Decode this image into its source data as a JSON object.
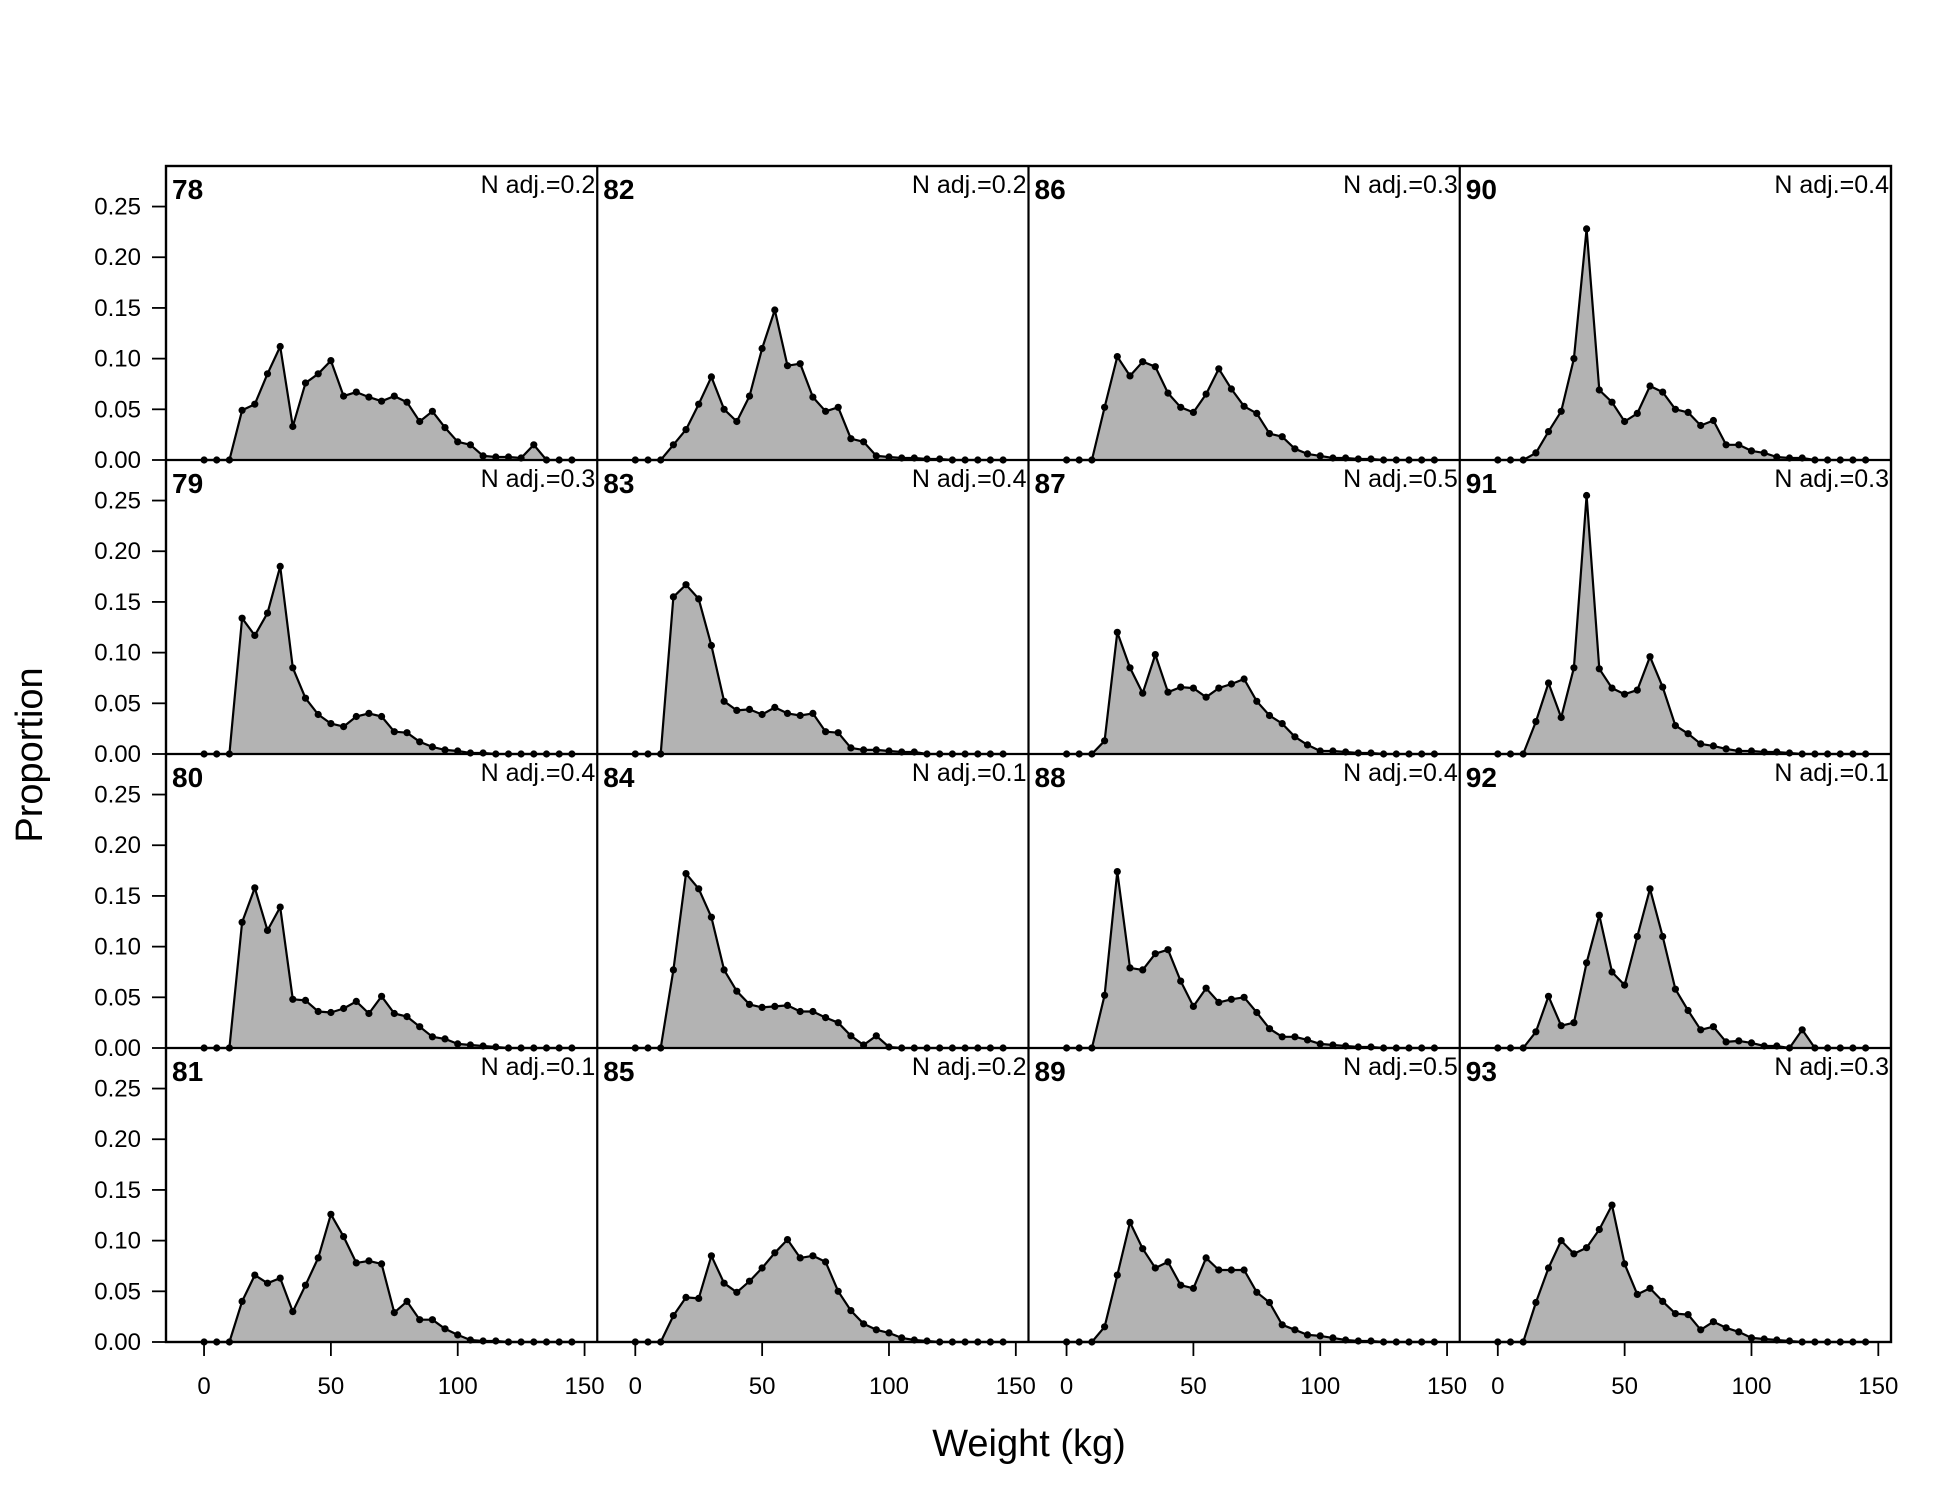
{
  "chart_data": {
    "type": "area",
    "xlabel": "Weight (kg)",
    "ylabel": "Proportion",
    "xlim": [
      -15,
      155
    ],
    "ylim": [
      0,
      0.29
    ],
    "xticks": [
      0,
      50,
      100,
      150
    ],
    "yticks": [
      "0.00",
      "0.05",
      "0.10",
      "0.15",
      "0.20",
      "0.25"
    ],
    "x": [
      0,
      5,
      10,
      15,
      20,
      25,
      30,
      35,
      40,
      45,
      50,
      55,
      60,
      65,
      70,
      75,
      80,
      85,
      90,
      95,
      100,
      105,
      110,
      115,
      120,
      125,
      130,
      135,
      140,
      145
    ],
    "panels": [
      {
        "year": "78",
        "adj": "N adj.=0.2",
        "values": [
          0,
          0,
          0,
          0.049,
          0.055,
          0.085,
          0.112,
          0.033,
          0.076,
          0.085,
          0.098,
          0.063,
          0.067,
          0.062,
          0.058,
          0.063,
          0.057,
          0.038,
          0.048,
          0.032,
          0.018,
          0.015,
          0.004,
          0.003,
          0.003,
          0.002,
          0.015,
          0,
          0,
          0
        ]
      },
      {
        "year": "82",
        "adj": "N adj.=0.2",
        "values": [
          0,
          0,
          0,
          0.015,
          0.03,
          0.055,
          0.082,
          0.05,
          0.038,
          0.063,
          0.11,
          0.148,
          0.093,
          0.095,
          0.062,
          0.048,
          0.052,
          0.021,
          0.018,
          0.004,
          0.003,
          0.002,
          0.002,
          0.001,
          0.001,
          0,
          0,
          0,
          0,
          0
        ]
      },
      {
        "year": "86",
        "adj": "N adj.=0.3",
        "values": [
          0,
          0,
          0,
          0.052,
          0.102,
          0.083,
          0.097,
          0.092,
          0.066,
          0.052,
          0.047,
          0.065,
          0.09,
          0.07,
          0.053,
          0.046,
          0.026,
          0.023,
          0.011,
          0.006,
          0.004,
          0.002,
          0.002,
          0.001,
          0.001,
          0,
          0,
          0,
          0,
          0
        ]
      },
      {
        "year": "90",
        "adj": "N adj.=0.4",
        "values": [
          0,
          0,
          0,
          0.007,
          0.028,
          0.048,
          0.1,
          0.228,
          0.069,
          0.057,
          0.038,
          0.046,
          0.073,
          0.067,
          0.05,
          0.047,
          0.034,
          0.039,
          0.015,
          0.015,
          0.009,
          0.007,
          0.003,
          0.002,
          0.002,
          0,
          0,
          0,
          0,
          0
        ]
      },
      {
        "year": "79",
        "adj": "N adj.=0.3",
        "values": [
          0,
          0,
          0,
          0.134,
          0.117,
          0.139,
          0.185,
          0.085,
          0.055,
          0.039,
          0.03,
          0.027,
          0.037,
          0.04,
          0.037,
          0.022,
          0.021,
          0.012,
          0.007,
          0.004,
          0.003,
          0.001,
          0.001,
          0,
          0,
          0,
          0,
          0,
          0,
          0
        ]
      },
      {
        "year": "83",
        "adj": "N adj.=0.4",
        "values": [
          0,
          0,
          0,
          0.155,
          0.167,
          0.153,
          0.107,
          0.052,
          0.043,
          0.044,
          0.039,
          0.046,
          0.04,
          0.038,
          0.04,
          0.022,
          0.021,
          0.006,
          0.004,
          0.004,
          0.003,
          0.002,
          0.002,
          0,
          0,
          0,
          0,
          0,
          0,
          0
        ]
      },
      {
        "year": "87",
        "adj": "N adj.=0.5",
        "values": [
          0,
          0,
          0,
          0.013,
          0.12,
          0.085,
          0.06,
          0.098,
          0.061,
          0.066,
          0.065,
          0.056,
          0.065,
          0.069,
          0.074,
          0.052,
          0.038,
          0.03,
          0.017,
          0.009,
          0.003,
          0.003,
          0.002,
          0.001,
          0.001,
          0,
          0,
          0,
          0,
          0
        ]
      },
      {
        "year": "91",
        "adj": "N adj.=0.3",
        "values": [
          0,
          0,
          0,
          0.032,
          0.07,
          0.036,
          0.085,
          0.255,
          0.084,
          0.065,
          0.059,
          0.063,
          0.096,
          0.066,
          0.028,
          0.02,
          0.01,
          0.008,
          0.005,
          0.003,
          0.003,
          0.002,
          0.002,
          0.001,
          0,
          0,
          0,
          0,
          0,
          0
        ]
      },
      {
        "year": "80",
        "adj": "N adj.=0.4",
        "values": [
          0,
          0,
          0,
          0.124,
          0.158,
          0.116,
          0.139,
          0.048,
          0.047,
          0.036,
          0.035,
          0.039,
          0.046,
          0.034,
          0.051,
          0.034,
          0.031,
          0.021,
          0.011,
          0.009,
          0.004,
          0.003,
          0.002,
          0.001,
          0,
          0,
          0,
          0,
          0,
          0
        ]
      },
      {
        "year": "84",
        "adj": "N adj.=0.1",
        "values": [
          0,
          0,
          0,
          0.077,
          0.172,
          0.157,
          0.129,
          0.077,
          0.056,
          0.043,
          0.04,
          0.041,
          0.042,
          0.036,
          0.036,
          0.03,
          0.025,
          0.012,
          0.003,
          0.012,
          0.001,
          0,
          0,
          0,
          0,
          0,
          0,
          0,
          0,
          0
        ]
      },
      {
        "year": "88",
        "adj": "N adj.=0.4",
        "values": [
          0,
          0,
          0,
          0.052,
          0.174,
          0.079,
          0.077,
          0.093,
          0.097,
          0.066,
          0.041,
          0.059,
          0.045,
          0.048,
          0.05,
          0.035,
          0.019,
          0.011,
          0.011,
          0.008,
          0.004,
          0.003,
          0.002,
          0.001,
          0.001,
          0,
          0,
          0,
          0,
          0
        ]
      },
      {
        "year": "92",
        "adj": "N adj.=0.1",
        "values": [
          0,
          0,
          0,
          0.016,
          0.051,
          0.022,
          0.025,
          0.084,
          0.131,
          0.075,
          0.062,
          0.11,
          0.157,
          0.11,
          0.058,
          0.037,
          0.018,
          0.021,
          0.006,
          0.007,
          0.005,
          0.002,
          0.002,
          0,
          0.018,
          0,
          0,
          0,
          0,
          0
        ]
      },
      {
        "year": "81",
        "adj": "N adj.=0.1",
        "values": [
          0,
          0,
          0,
          0.04,
          0.066,
          0.058,
          0.063,
          0.03,
          0.056,
          0.083,
          0.126,
          0.104,
          0.078,
          0.08,
          0.077,
          0.029,
          0.04,
          0.022,
          0.022,
          0.013,
          0.007,
          0.002,
          0.001,
          0.001,
          0,
          0,
          0,
          0,
          0,
          0
        ]
      },
      {
        "year": "85",
        "adj": "N adj.=0.2",
        "values": [
          0,
          0,
          0,
          0.026,
          0.044,
          0.043,
          0.085,
          0.058,
          0.049,
          0.06,
          0.073,
          0.088,
          0.101,
          0.083,
          0.085,
          0.079,
          0.05,
          0.031,
          0.018,
          0.012,
          0.009,
          0.004,
          0.002,
          0.001,
          0,
          0,
          0,
          0,
          0,
          0
        ]
      },
      {
        "year": "89",
        "adj": "N adj.=0.5",
        "values": [
          0,
          0,
          0,
          0.015,
          0.066,
          0.118,
          0.092,
          0.073,
          0.079,
          0.056,
          0.053,
          0.083,
          0.071,
          0.071,
          0.071,
          0.049,
          0.039,
          0.017,
          0.012,
          0.007,
          0.006,
          0.004,
          0.002,
          0.001,
          0.001,
          0,
          0,
          0,
          0,
          0
        ]
      },
      {
        "year": "93",
        "adj": "N adj.=0.3",
        "values": [
          0,
          0,
          0,
          0.039,
          0.073,
          0.1,
          0.087,
          0.093,
          0.111,
          0.135,
          0.077,
          0.047,
          0.053,
          0.04,
          0.028,
          0.027,
          0.012,
          0.02,
          0.014,
          0.01,
          0.004,
          0.003,
          0.002,
          0.001,
          0,
          0,
          0,
          0,
          0,
          0
        ]
      }
    ]
  }
}
